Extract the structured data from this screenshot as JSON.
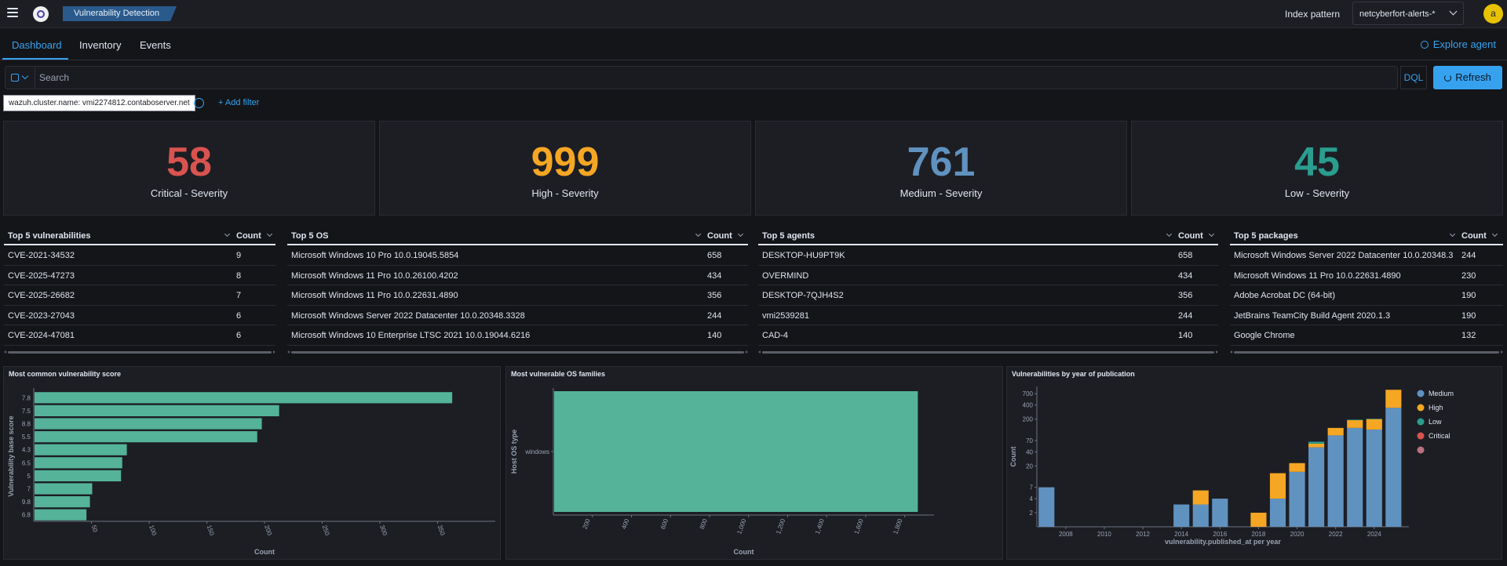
{
  "header": {
    "app_title": "Vulnerability Detection",
    "index_pattern_label": "Index pattern",
    "index_pattern_value": "netcyberfort-alerts-*",
    "avatar_initial": "a"
  },
  "tabs": [
    {
      "label": "Dashboard",
      "active": true
    },
    {
      "label": "Inventory",
      "active": false
    },
    {
      "label": "Events",
      "active": false
    }
  ],
  "explore_agent_label": "Explore agent",
  "search": {
    "placeholder": "Search",
    "language": "DQL",
    "refresh_label": "Refresh"
  },
  "filters": {
    "pill": "wazuh.cluster.name: vmi2274812.contaboserver.net",
    "add_label": "+ Add filter"
  },
  "metrics": [
    {
      "value": "58",
      "label": "Critical - Severity",
      "color": "#d9534f"
    },
    {
      "value": "999",
      "label": "High - Severity",
      "color": "#f5a623"
    },
    {
      "value": "761",
      "label": "Medium - Severity",
      "color": "#6092c0"
    },
    {
      "value": "45",
      "label": "Low - Severity",
      "color": "#2a9d8f"
    }
  ],
  "tables": [
    {
      "title": "Top 5 vulnerabilities",
      "count_header": "Count",
      "rows": [
        {
          "name": "CVE-2021-34532",
          "count": "9"
        },
        {
          "name": "CVE-2025-47273",
          "count": "8"
        },
        {
          "name": "CVE-2025-26682",
          "count": "7"
        },
        {
          "name": "CVE-2023-27043",
          "count": "6"
        },
        {
          "name": "CVE-2024-47081",
          "count": "6"
        }
      ]
    },
    {
      "title": "Top 5 OS",
      "count_header": "Count",
      "rows": [
        {
          "name": "Microsoft Windows 10 Pro 10.0.19045.5854",
          "count": "658"
        },
        {
          "name": "Microsoft Windows 11 Pro 10.0.26100.4202",
          "count": "434"
        },
        {
          "name": "Microsoft Windows 11 Pro 10.0.22631.4890",
          "count": "356"
        },
        {
          "name": "Microsoft Windows Server 2022 Datacenter 10.0.20348.3328",
          "count": "244"
        },
        {
          "name": "Microsoft Windows 10 Enterprise LTSC 2021 10.0.19044.6216",
          "count": "140"
        }
      ]
    },
    {
      "title": "Top 5 agents",
      "count_header": "Count",
      "rows": [
        {
          "name": "DESKTOP-HU9PT9K",
          "count": "658"
        },
        {
          "name": "OVERMIND",
          "count": "434"
        },
        {
          "name": "DESKTOP-7QJH4S2",
          "count": "356"
        },
        {
          "name": "vmi2539281",
          "count": "244"
        },
        {
          "name": "CAD-4",
          "count": "140"
        }
      ]
    },
    {
      "title": "Top 5 packages",
      "count_header": "Count",
      "rows": [
        {
          "name": "Microsoft Windows Server 2022 Datacenter 10.0.20348.3",
          "count": "244"
        },
        {
          "name": "Microsoft Windows 11 Pro 10.0.22631.4890",
          "count": "230"
        },
        {
          "name": "Adobe Acrobat DC (64-bit)",
          "count": "190"
        },
        {
          "name": "JetBrains TeamCity Build Agent 2020.1.3",
          "count": "190"
        },
        {
          "name": "Google Chrome",
          "count": "132"
        }
      ]
    }
  ],
  "chart_data": [
    {
      "type": "bar",
      "orientation": "horizontal",
      "title": "Most common vulnerability score",
      "xlabel": "Count",
      "ylabel": "Vulnerability base score",
      "categories": [
        "7.8",
        "7.5",
        "8.8",
        "5.5",
        "4.3",
        "6.5",
        "5",
        "7",
        "9.8",
        "6.8"
      ],
      "values": [
        362,
        212,
        197,
        193,
        80,
        76,
        75,
        50,
        48,
        45
      ],
      "xlim": [
        0,
        400
      ],
      "xticks": [
        "50",
        "100",
        "150",
        "200",
        "250",
        "300",
        "350"
      ],
      "color": "#54b399"
    },
    {
      "type": "bar",
      "orientation": "horizontal",
      "title": "Most vulnerable OS families",
      "xlabel": "Count",
      "ylabel": "Host OS type",
      "categories": [
        "windows"
      ],
      "values": [
        1863
      ],
      "xlim": [
        0,
        1950
      ],
      "xticks": [
        "200",
        "400",
        "600",
        "800",
        "1,000",
        "1,200",
        "1,400",
        "1,600",
        "1,800"
      ],
      "color": "#54b399"
    },
    {
      "type": "bar",
      "stacked": true,
      "scale": "log",
      "title": "Vulnerabilities by year of publication",
      "xlabel": "vulnerability.published_at per year",
      "ylabel": "Count",
      "yticks": [
        "700",
        "400",
        "200",
        "70",
        "40",
        "20",
        "7",
        "4",
        "2"
      ],
      "xticks": [
        "2008",
        "2010",
        "2012",
        "2014",
        "2016",
        "2018",
        "2020",
        "2022",
        "2024"
      ],
      "legend": {
        "position": "right",
        "items": [
          {
            "name": "Medium",
            "color": "#6092c0"
          },
          {
            "name": "High",
            "color": "#f5a623"
          },
          {
            "name": "Low",
            "color": "#2a9d8f"
          },
          {
            "name": "Critical",
            "color": "#d9534f"
          },
          {
            "name": "",
            "color": "#b9727f"
          }
        ]
      },
      "series": [
        {
          "name": "Medium",
          "x": [
            2007,
            2014,
            2015,
            2016,
            2018,
            2019,
            2020,
            2021,
            2022,
            2023,
            2024,
            2025
          ],
          "values": [
            7,
            3,
            3,
            4,
            0,
            4,
            15,
            50,
            90,
            130,
            120,
            350
          ]
        },
        {
          "name": "High",
          "x": [
            2015,
            2018,
            2019,
            2020,
            2021,
            2022,
            2023,
            2024,
            2025
          ],
          "values": [
            3,
            2,
            10,
            8,
            10,
            40,
            60,
            80,
            500
          ]
        },
        {
          "name": "Low",
          "x": [
            2021,
            2023,
            2024
          ],
          "values": [
            6,
            5,
            5
          ]
        }
      ]
    }
  ]
}
